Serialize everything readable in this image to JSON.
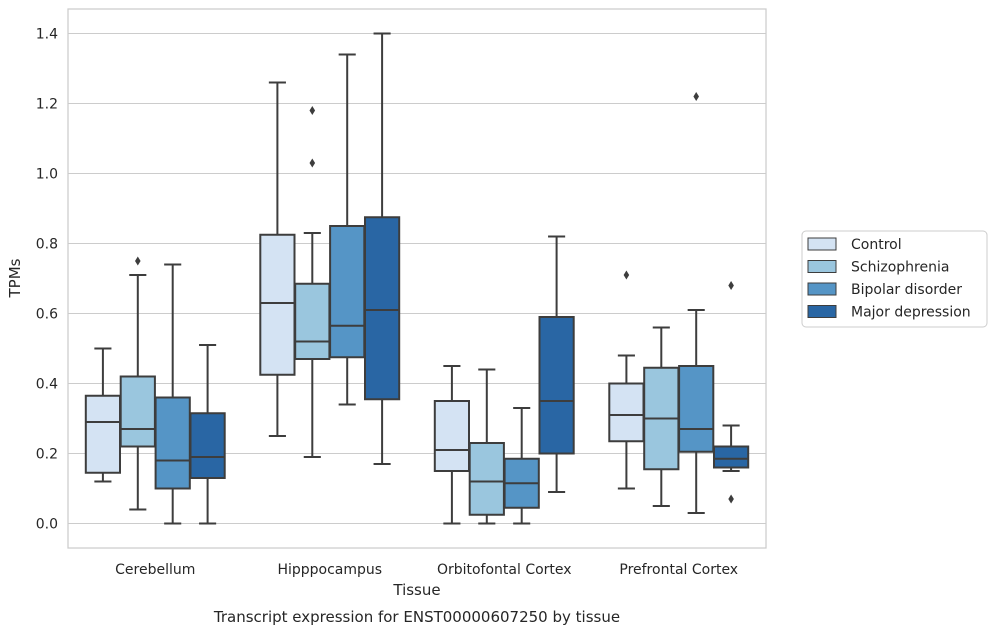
{
  "chart_data": {
    "type": "box",
    "title": "",
    "xlabel": "Tissue",
    "ylabel": "TPMs",
    "caption": "Transcript expression for ENST00000607250 by tissue",
    "ylim": [
      -0.07,
      1.47
    ],
    "yticks": [
      "0.0",
      "0.2",
      "0.4",
      "0.6",
      "0.8",
      "1.0",
      "1.2",
      "1.4"
    ],
    "grid": "horizontal",
    "legend_position": "right",
    "categories": [
      "Cerebellum",
      "Hipppocampus",
      "Orbitofontal Cortex",
      "Prefrontal Cortex"
    ],
    "series": [
      {
        "name": "Control",
        "color": "#d4e3f3",
        "boxes": [
          {
            "whislo": 0.12,
            "q1": 0.145,
            "med": 0.29,
            "q3": 0.365,
            "whishi": 0.5,
            "fliers": []
          },
          {
            "whislo": 0.25,
            "q1": 0.425,
            "med": 0.63,
            "q3": 0.825,
            "whishi": 1.26,
            "fliers": []
          },
          {
            "whislo": 0.0,
            "q1": 0.15,
            "med": 0.21,
            "q3": 0.35,
            "whishi": 0.45,
            "fliers": []
          },
          {
            "whislo": 0.1,
            "q1": 0.235,
            "med": 0.31,
            "q3": 0.4,
            "whishi": 0.48,
            "fliers": [
              0.71
            ]
          }
        ]
      },
      {
        "name": "Schizophrenia",
        "color": "#9ac6de",
        "boxes": [
          {
            "whislo": 0.04,
            "q1": 0.22,
            "med": 0.27,
            "q3": 0.42,
            "whishi": 0.71,
            "fliers": [
              0.75
            ]
          },
          {
            "whislo": 0.19,
            "q1": 0.47,
            "med": 0.52,
            "q3": 0.685,
            "whishi": 0.83,
            "fliers": [
              1.03,
              1.18
            ]
          },
          {
            "whislo": 0.0,
            "q1": 0.025,
            "med": 0.12,
            "q3": 0.23,
            "whishi": 0.44,
            "fliers": []
          },
          {
            "whislo": 0.05,
            "q1": 0.155,
            "med": 0.3,
            "q3": 0.445,
            "whishi": 0.56,
            "fliers": []
          }
        ]
      },
      {
        "name": "Bipolar disorder",
        "color": "#5595c6",
        "boxes": [
          {
            "whislo": 0.0,
            "q1": 0.1,
            "med": 0.18,
            "q3": 0.36,
            "whishi": 0.74,
            "fliers": []
          },
          {
            "whislo": 0.34,
            "q1": 0.475,
            "med": 0.565,
            "q3": 0.85,
            "whishi": 1.34,
            "fliers": []
          },
          {
            "whislo": 0.0,
            "q1": 0.045,
            "med": 0.115,
            "q3": 0.185,
            "whishi": 0.33,
            "fliers": []
          },
          {
            "whislo": 0.03,
            "q1": 0.205,
            "med": 0.27,
            "q3": 0.45,
            "whishi": 0.61,
            "fliers": [
              1.22
            ]
          }
        ]
      },
      {
        "name": "Major depression",
        "color": "#2966a4",
        "boxes": [
          {
            "whislo": 0.0,
            "q1": 0.13,
            "med": 0.19,
            "q3": 0.315,
            "whishi": 0.51,
            "fliers": []
          },
          {
            "whislo": 0.17,
            "q1": 0.355,
            "med": 0.61,
            "q3": 0.875,
            "whishi": 1.4,
            "fliers": []
          },
          {
            "whislo": 0.09,
            "q1": 0.2,
            "med": 0.35,
            "q3": 0.59,
            "whishi": 0.82,
            "fliers": []
          },
          {
            "whislo": 0.15,
            "q1": 0.16,
            "med": 0.185,
            "q3": 0.22,
            "whishi": 0.28,
            "fliers": [
              0.07,
              0.68
            ]
          }
        ]
      }
    ]
  }
}
